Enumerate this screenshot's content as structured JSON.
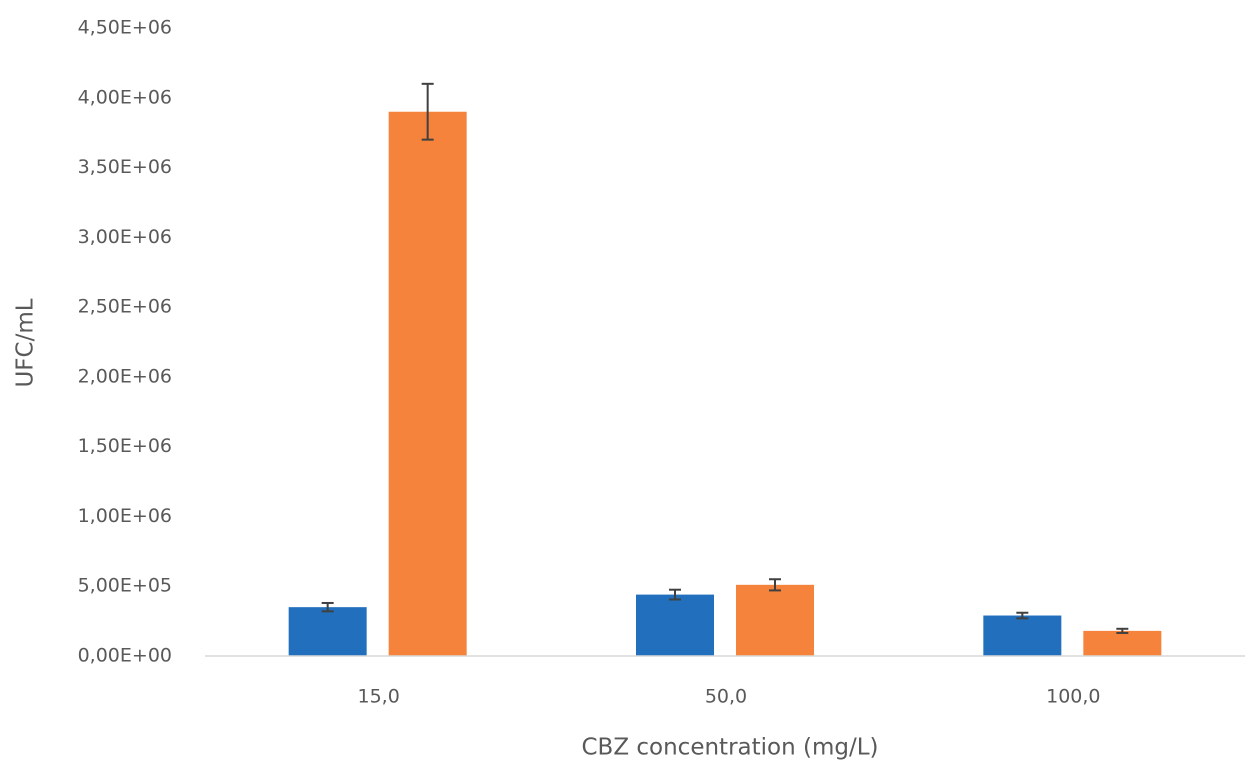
{
  "chart_data": {
    "type": "bar",
    "x_label": "CBZ concentration (mg/L)",
    "y_label": "UFC/mL",
    "categories": [
      "15,0",
      "50,0",
      "100,0"
    ],
    "series": [
      {
        "color": "#2270bd",
        "values": [
          350000,
          440000,
          290000
        ],
        "errors": [
          30000,
          35000,
          20000
        ]
      },
      {
        "color": "#f5833b",
        "values": [
          3900000,
          510000,
          180000
        ],
        "errors": [
          200000,
          40000,
          15000
        ]
      }
    ],
    "ylim": [
      0,
      4500000
    ],
    "yticks": [
      {
        "value": 0,
        "label": "0,00E+00"
      },
      {
        "value": 500000,
        "label": "5,00E+05"
      },
      {
        "value": 1000000,
        "label": "1,00E+06"
      },
      {
        "value": 1500000,
        "label": "1,50E+06"
      },
      {
        "value": 2000000,
        "label": "2,00E+06"
      },
      {
        "value": 2500000,
        "label": "2,50E+06"
      },
      {
        "value": 3000000,
        "label": "3,00E+06"
      },
      {
        "value": 3500000,
        "label": "3,50E+06"
      },
      {
        "value": 4000000,
        "label": "4,00E+06"
      },
      {
        "value": 4500000,
        "label": "4,50E+06"
      }
    ],
    "grid": false
  }
}
